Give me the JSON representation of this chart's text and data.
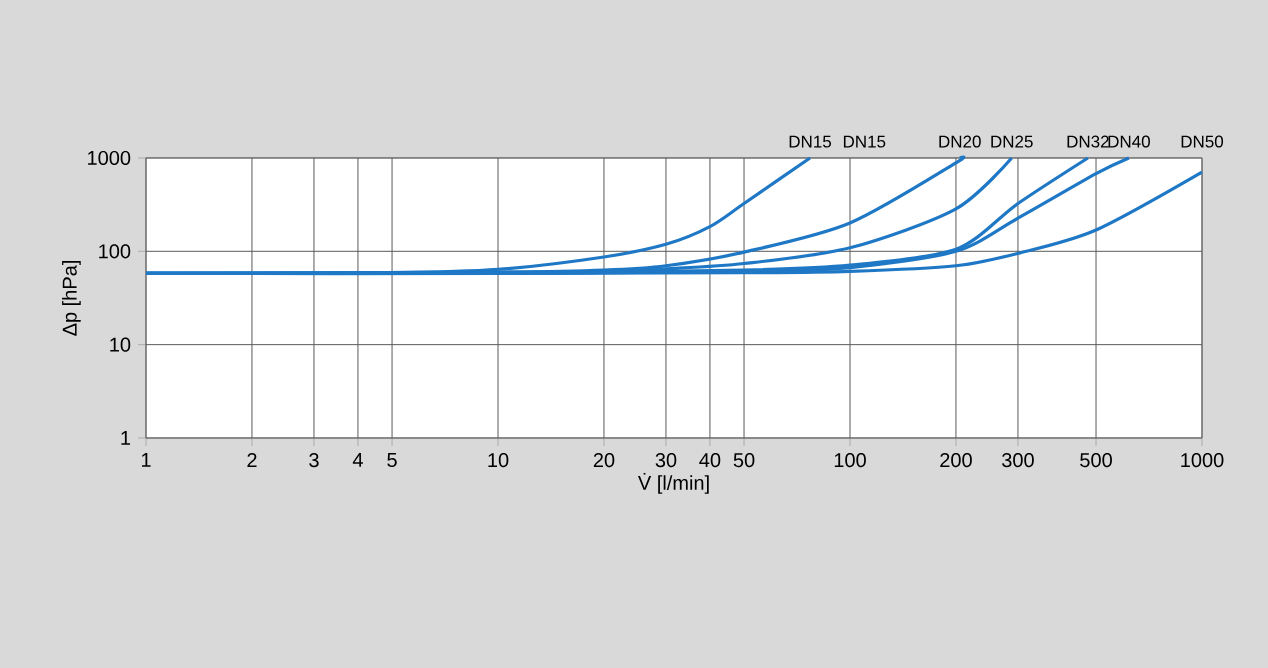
{
  "chart_data": {
    "type": "line",
    "xlabel": "V̇ [l/min]",
    "ylabel": "Δp [hPa]",
    "log": "xy",
    "grid": true,
    "legend": false,
    "marker": "none",
    "line_style": "solid",
    "xlim": [
      1,
      1000
    ],
    "ylim": [
      1,
      1000
    ],
    "xticks": [
      1,
      2,
      3,
      4,
      5,
      10,
      20,
      30,
      40,
      50,
      100,
      200,
      300,
      500,
      1000
    ],
    "yticks": [
      1,
      10,
      100,
      1000
    ],
    "series": [
      {
        "name": "DN15",
        "color": "#1f78c6",
        "x": [
          1,
          5,
          10,
          20,
          30,
          40,
          50,
          77
        ],
        "values": [
          58,
          59,
          64,
          87,
          119,
          184,
          325,
          1000
        ]
      },
      {
        "name": "DN20",
        "color": "#1f78c6",
        "x": [
          1,
          10,
          20,
          30,
          50,
          100,
          200,
          205
        ],
        "values": [
          58,
          60,
          63,
          70,
          98,
          201,
          886,
          1000
        ]
      },
      {
        "name": "DN25",
        "color": "#1f78c6",
        "x": [
          1,
          10,
          20,
          30,
          50,
          100,
          200,
          288
        ],
        "values": [
          58,
          59,
          61,
          65,
          74,
          109,
          285,
          1000
        ]
      },
      {
        "name": "DN32",
        "color": "#1f78c6",
        "x": [
          1,
          10,
          50,
          100,
          200,
          300,
          474
        ],
        "values": [
          58,
          58,
          63,
          71,
          105,
          325,
          1000
        ]
      },
      {
        "name": "DN40",
        "color": "#1f78c6",
        "x": [
          1,
          10,
          50,
          100,
          200,
          300,
          500,
          620
        ],
        "values": [
          58,
          58,
          61,
          67,
          100,
          227,
          680,
          1000
        ]
      },
      {
        "name": "DN50",
        "color": "#1f78c6",
        "x": [
          1,
          10,
          50,
          100,
          200,
          300,
          500,
          1000
        ],
        "values": [
          58,
          58,
          59,
          61,
          70,
          95,
          169,
          705
        ]
      }
    ],
    "annotations": [
      "DN15"
    ]
  }
}
